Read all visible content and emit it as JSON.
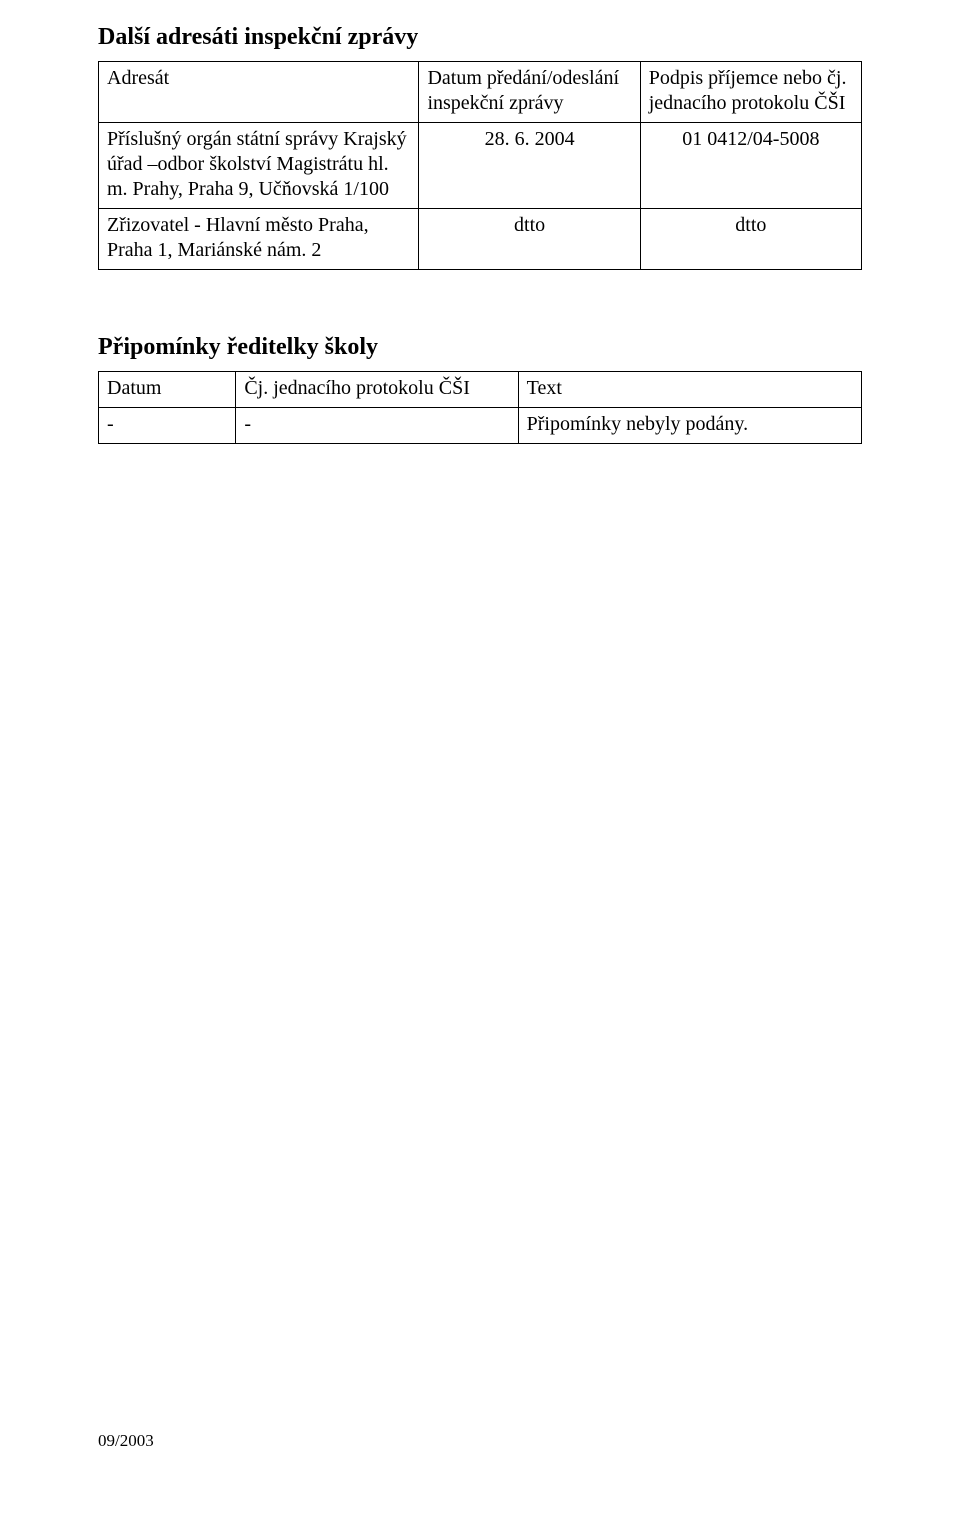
{
  "section1": {
    "heading": "Další adresáti inspekční zprávy",
    "table": {
      "header": {
        "c1": "Adresát",
        "c2": "Datum předání/odeslání inspekční zprávy",
        "c3": "Podpis příjemce nebo čj. jednacího protokolu ČŠI"
      },
      "rows": [
        {
          "c1": "Příslušný orgán státní správy Krajský úřad –odbor školství Magistrátu hl. m. Prahy, Praha 9, Učňovská 1/100",
          "c2": "28. 6. 2004",
          "c3": "01 0412/04-5008"
        },
        {
          "c1": "Zřizovatel - Hlavní město Praha, Praha 1, Mariánské nám. 2",
          "c2": "dtto",
          "c3": "dtto"
        }
      ]
    }
  },
  "section2": {
    "heading": "Připomínky ředitelky školy",
    "table": {
      "header": {
        "c1": "Datum",
        "c2": "Čj. jednacího protokolu ČŠI",
        "c3": "Text"
      },
      "rows": [
        {
          "c1": "-",
          "c2": "-",
          "c3": "Připomínky nebyly podány."
        }
      ]
    }
  },
  "footer": "09/2003"
}
